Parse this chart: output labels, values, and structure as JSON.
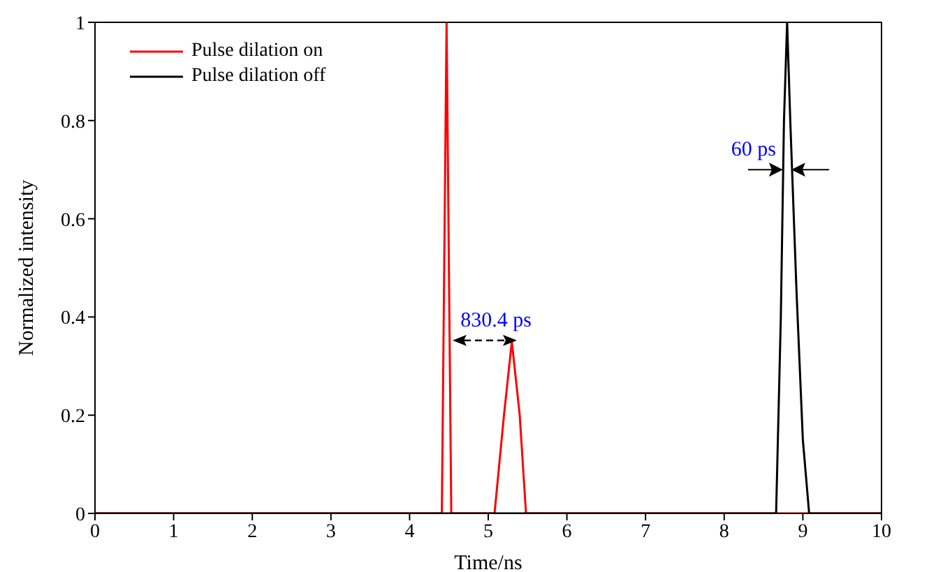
{
  "chart_data": {
    "type": "line",
    "xlabel": "Time/ns",
    "ylabel": "Normalized intensity",
    "xlim": [
      0,
      10
    ],
    "ylim": [
      0,
      1
    ],
    "xticks": [
      0,
      1,
      2,
      3,
      4,
      5,
      6,
      7,
      8,
      9,
      10
    ],
    "yticks": [
      0,
      0.2,
      0.4,
      0.6,
      0.8,
      1
    ],
    "grid": false,
    "legend": "top left",
    "marker": "none",
    "line_style": "solid",
    "series": [
      {
        "name": "Pulse dilation on",
        "color": "#ff0000",
        "x": [
          0,
          4.41,
          4.47,
          4.53,
          5.08,
          5.2,
          5.3,
          5.4,
          5.48,
          10
        ],
        "values": [
          0,
          0,
          1,
          0,
          0,
          0.2,
          0.35,
          0.2,
          0,
          0
        ]
      },
      {
        "name": "Pulse dilation off",
        "color": "#000000",
        "x": [
          0,
          8.66,
          8.72,
          8.76,
          8.8,
          8.84,
          8.92,
          9.0,
          9.08,
          10
        ],
        "values": [
          0,
          0,
          0.4,
          0.8,
          1,
          0.8,
          0.45,
          0.15,
          0,
          0
        ]
      }
    ],
    "annotations": [
      "830.4 ps",
      {
        "text": "60 ps",
        "x": 8.8,
        "y": 0.7
      }
    ]
  }
}
